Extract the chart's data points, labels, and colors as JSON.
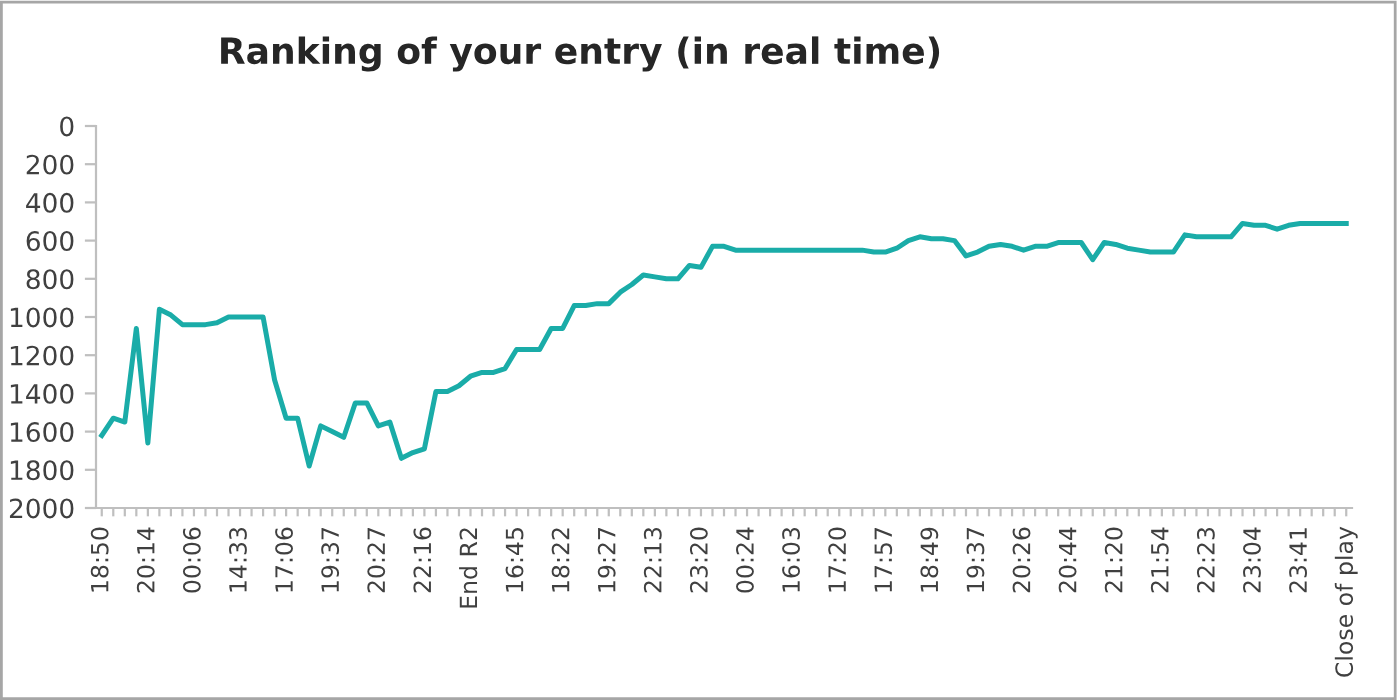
{
  "chart_data": {
    "type": "line",
    "title": "Ranking of your entry (in real time)",
    "categories": [
      "18:50",
      null,
      null,
      null,
      "20:14",
      null,
      null,
      null,
      "00:06",
      null,
      null,
      null,
      "14:33",
      null,
      null,
      null,
      "17:06",
      null,
      null,
      null,
      "19:37",
      null,
      null,
      null,
      "20:27",
      null,
      null,
      null,
      "22:16",
      null,
      null,
      null,
      "End R2",
      null,
      null,
      null,
      "16:45",
      null,
      null,
      null,
      "18:22",
      null,
      null,
      null,
      "19:27",
      null,
      null,
      null,
      "22:13",
      null,
      null,
      null,
      "23:20",
      null,
      null,
      null,
      "00:24",
      null,
      null,
      null,
      "16:03",
      null,
      null,
      null,
      "17:20",
      null,
      null,
      null,
      "17:57",
      null,
      null,
      null,
      "18:49",
      null,
      null,
      null,
      "19:37",
      null,
      null,
      null,
      "20:26",
      null,
      null,
      null,
      "20:44",
      null,
      null,
      null,
      "21:20",
      null,
      null,
      null,
      "21:54",
      null,
      null,
      null,
      "22:23",
      null,
      null,
      null,
      "23:04",
      null,
      null,
      null,
      "23:41",
      null,
      null,
      null,
      "Close of play"
    ],
    "series": [
      {
        "color": "#1aaca8",
        "values": [
          1620,
          1530,
          1550,
          1060,
          1660,
          960,
          990,
          1040,
          1040,
          1040,
          1030,
          1000,
          1000,
          1000,
          1000,
          1330,
          1530,
          1530,
          1780,
          1570,
          1600,
          1630,
          1450,
          1450,
          1570,
          1550,
          1740,
          1710,
          1690,
          1390,
          1390,
          1360,
          1310,
          1290,
          1290,
          1270,
          1170,
          1170,
          1170,
          1060,
          1060,
          940,
          940,
          930,
          930,
          870,
          830,
          780,
          790,
          800,
          800,
          730,
          740,
          630,
          630,
          650,
          650,
          650,
          650,
          650,
          650,
          650,
          650,
          650,
          650,
          650,
          650,
          660,
          660,
          640,
          600,
          580,
          590,
          590,
          600,
          680,
          660,
          630,
          620,
          630,
          650,
          630,
          630,
          610,
          610,
          610,
          700,
          610,
          620,
          640,
          650,
          660,
          660,
          660,
          570,
          580,
          580,
          580,
          580,
          510,
          520,
          520,
          540,
          520,
          510,
          510,
          510,
          510,
          510
        ]
      }
    ],
    "ylim": [
      2000,
      0
    ],
    "yticks": [
      0,
      200,
      400,
      600,
      800,
      1000,
      1200,
      1400,
      1600,
      1800,
      2000
    ],
    "grid": false,
    "line_style": "solid",
    "marker": "none"
  }
}
